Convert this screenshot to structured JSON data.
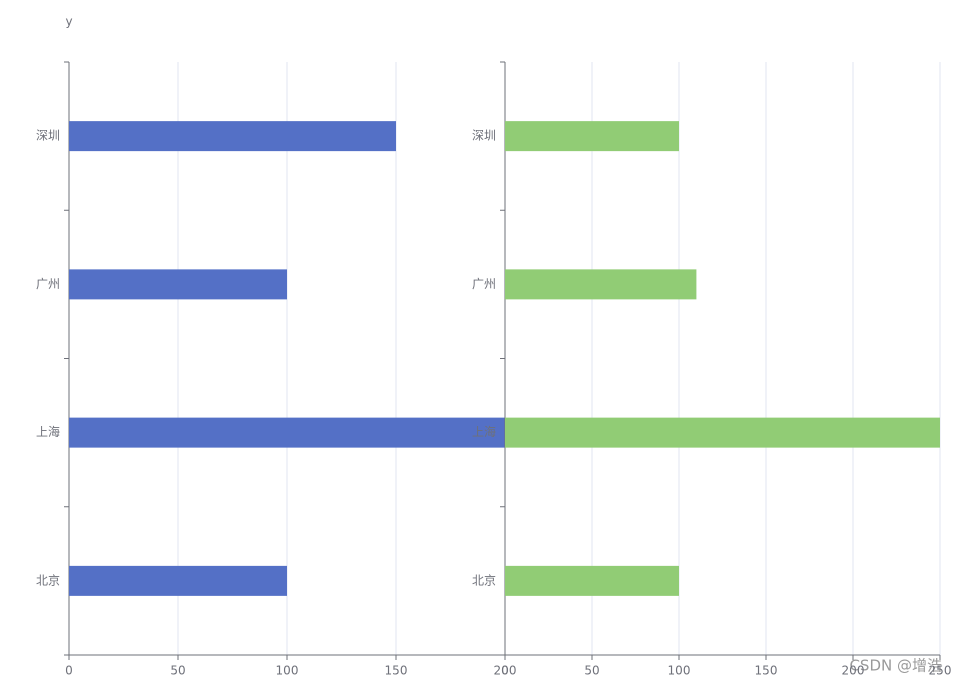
{
  "chart_data": [
    {
      "type": "bar",
      "orientation": "horizontal",
      "axis_name": "y",
      "categories": [
        "北京",
        "上海",
        "广州",
        "深圳"
      ],
      "values": [
        100,
        200,
        100,
        150
      ],
      "color": "#5470c6",
      "xlim": [
        0,
        200
      ],
      "xticks": [
        0,
        50,
        100,
        150,
        200
      ],
      "grid": true
    },
    {
      "type": "bar",
      "orientation": "horizontal",
      "categories": [
        "北京",
        "上海",
        "广州",
        "深圳"
      ],
      "values": [
        100,
        250,
        110,
        100
      ],
      "color": "#91cc75",
      "xlim": [
        0,
        250
      ],
      "xticks": [
        0,
        50,
        100,
        150,
        200,
        250
      ],
      "grid": true
    }
  ],
  "watermark": "CSDN @增浩"
}
